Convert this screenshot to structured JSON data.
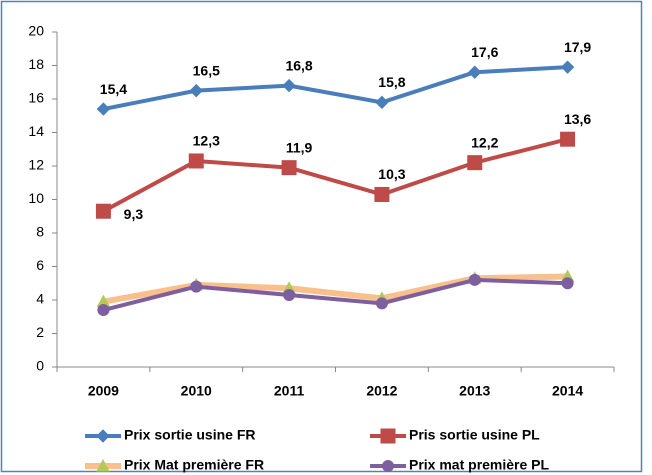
{
  "chart_data": {
    "type": "line",
    "categories": [
      "2009",
      "2010",
      "2011",
      "2012",
      "2013",
      "2014"
    ],
    "series": [
      {
        "name": "Prix sortie usine FR",
        "color": "#4a7ebb",
        "marker": "diamond",
        "values": [
          15.4,
          16.5,
          16.8,
          15.8,
          17.6,
          17.9
        ],
        "value_labels": [
          "15,4",
          "16,5",
          "16,8",
          "15,8",
          "17,6",
          "17,9"
        ]
      },
      {
        "name": "Pris sortie usine PL",
        "color": "#be4b48",
        "marker": "square",
        "values": [
          9.3,
          12.3,
          11.9,
          10.3,
          12.2,
          13.6
        ],
        "value_labels": [
          "9,3",
          "12,3",
          "11,9",
          "10,3",
          "12,2",
          "13,6"
        ]
      },
      {
        "name": "Prix Mat première FR",
        "color": "#f9c08c",
        "marker": "triangle",
        "marker_color": "#b5c95a",
        "values": [
          3.9,
          4.9,
          4.7,
          4.1,
          5.3,
          5.4
        ]
      },
      {
        "name": "Prix mat première PL",
        "color": "#7d5fa0",
        "marker": "circle",
        "values": [
          3.4,
          4.8,
          4.3,
          3.8,
          5.2,
          5.0
        ]
      }
    ],
    "ylim": [
      0,
      20
    ],
    "yticks": [
      0,
      2,
      4,
      6,
      8,
      10,
      12,
      14,
      16,
      18,
      20
    ],
    "grid": false,
    "legend": "bottom"
  }
}
